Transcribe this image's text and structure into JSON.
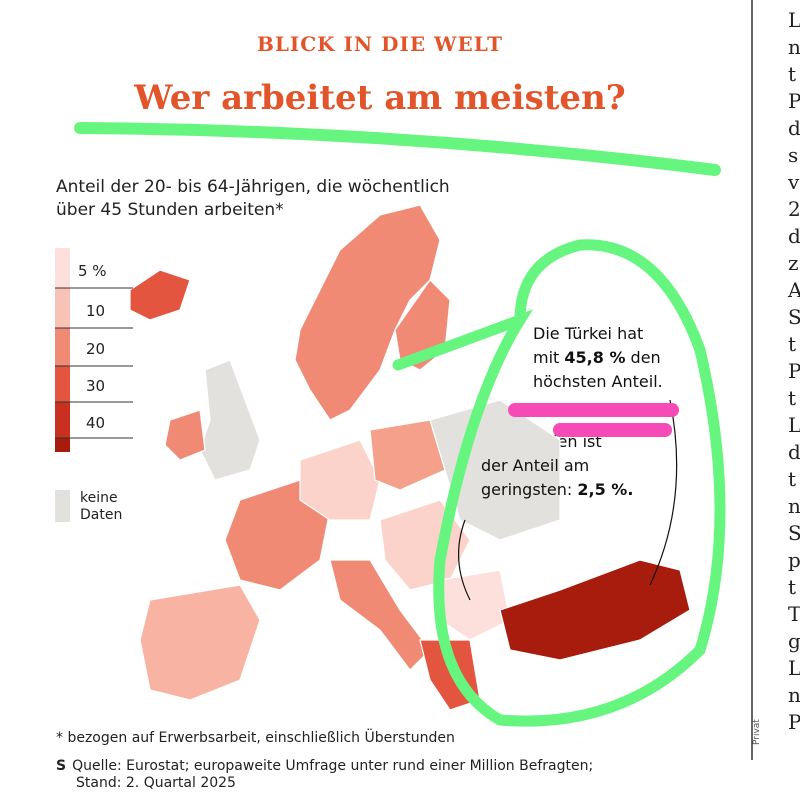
{
  "header": {
    "kicker": "BLICK IN DIE WELT",
    "title": "Wer arbeitet am meisten?"
  },
  "subtitle": {
    "line1": "Anteil der 20- bis 64-Jährigen, die wöchentlich",
    "line2": "über 45 Stunden arbeiten*"
  },
  "legend": {
    "classes": [
      "5 %",
      "10",
      "20",
      "30",
      "40"
    ],
    "no_data": {
      "line1": "keine",
      "line2": "Daten"
    }
  },
  "annotations": [
    {
      "line1": "Die Türkei hat",
      "before": "mit ",
      "highlight": "45,8 %",
      "after": " den",
      "line3": "höchsten Anteil."
    },
    {
      "line1": "In Bulgarien ist",
      "line2": "der Anteil am",
      "before": "geringsten: ",
      "highlight": "2,5 %."
    }
  ],
  "footnote": "* bezogen auf Erwerbsarbeit, einschließlich Überstunden",
  "source": {
    "logo": "S",
    "line1": "Quelle: Eurostat; europaweite Umfrage unter rund einer Million Befragten;",
    "line2": "Stand: 2. Quartal 2025"
  },
  "credit": "Privat",
  "right_column": [
    "L",
    "n",
    "t",
    "P",
    "d",
    "s",
    "v",
    "2",
    "d",
    "z",
    "A",
    "S",
    "t",
    "P",
    "t",
    "L",
    "d",
    "t",
    "n",
    "S",
    "p",
    "t",
    "T",
    "g",
    "L",
    "n",
    "P"
  ]
}
